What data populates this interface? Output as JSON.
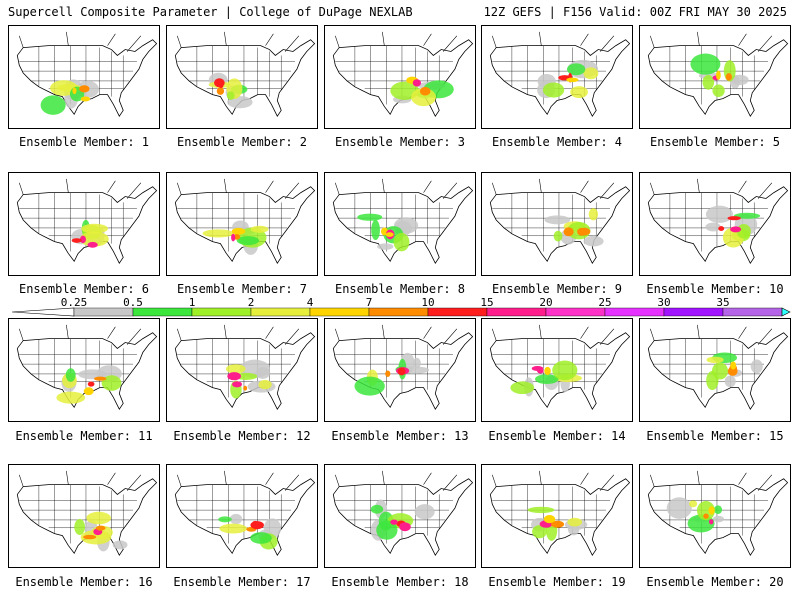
{
  "header": {
    "left": "Supercell Composite Parameter | College of DuPage NEXLAB",
    "right": "12Z GEFS | F156 Valid: 00Z FRI MAY 30 2025"
  },
  "members": [
    {
      "label": "Ensemble Member: 1"
    },
    {
      "label": "Ensemble Member: 2"
    },
    {
      "label": "Ensemble Member: 3"
    },
    {
      "label": "Ensemble Member: 4"
    },
    {
      "label": "Ensemble Member: 5"
    },
    {
      "label": "Ensemble Member: 6"
    },
    {
      "label": "Ensemble Member: 7"
    },
    {
      "label": "Ensemble Member: 8"
    },
    {
      "label": "Ensemble Member: 9"
    },
    {
      "label": "Ensemble Member: 10"
    },
    {
      "label": "Ensemble Member: 11"
    },
    {
      "label": "Ensemble Member: 12"
    },
    {
      "label": "Ensemble Member: 13"
    },
    {
      "label": "Ensemble Member: 14"
    },
    {
      "label": "Ensemble Member: 15"
    },
    {
      "label": "Ensemble Member: 16"
    },
    {
      "label": "Ensemble Member: 17"
    },
    {
      "label": "Ensemble Member: 18"
    },
    {
      "label": "Ensemble Member: 19"
    },
    {
      "label": "Ensemble Member: 20"
    }
  ],
  "colorbar": {
    "labels": [
      "0.25",
      "0.5",
      "1",
      "2",
      "4",
      "7",
      "10",
      "15",
      "20",
      "25",
      "30",
      "35"
    ],
    "colors": [
      "#c8c8c8",
      "#3ce63c",
      "#a0f028",
      "#e6f03c",
      "#ffd400",
      "#ff8c00",
      "#ff1e1e",
      "#ff1e8c",
      "#ff32c8",
      "#e632ff",
      "#a014ff",
      "#b464e6",
      "#32ffff"
    ]
  }
}
